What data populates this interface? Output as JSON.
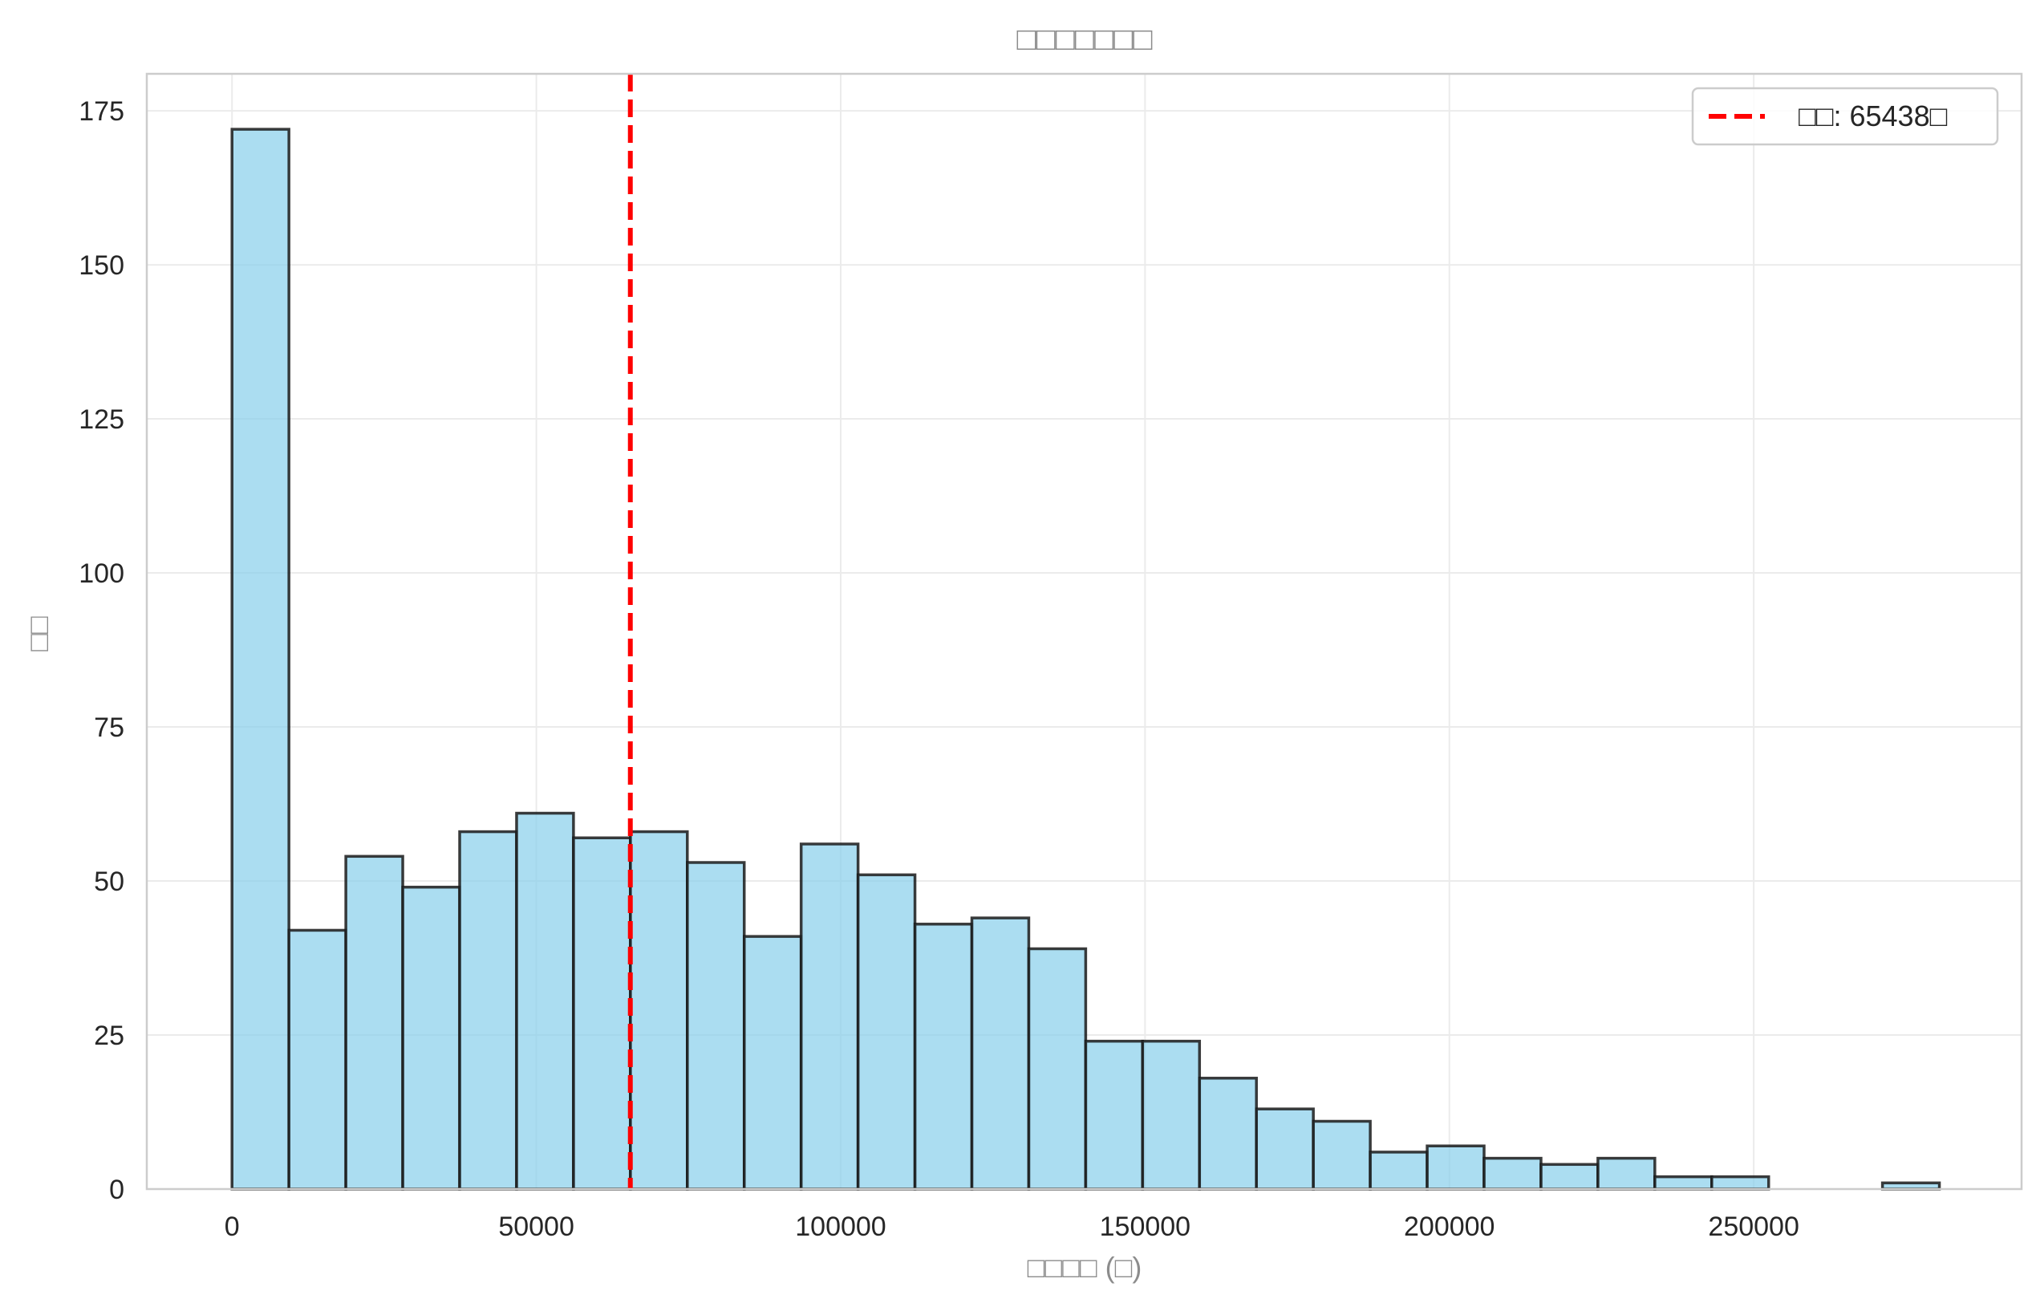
{
  "chart_data": {
    "type": "bar",
    "title": "□□□□□□□",
    "xlabel": "□□□□ (□)",
    "ylabel": "□□",
    "xlim": [
      -14000,
      294000
    ],
    "ylim": [
      0,
      181
    ],
    "x_ticks": [
      0,
      50000,
      100000,
      150000,
      200000,
      250000
    ],
    "x_tick_labels": [
      "0",
      "50000",
      "100000",
      "150000",
      "200000",
      "250000"
    ],
    "y_ticks": [
      0,
      25,
      50,
      75,
      100,
      125,
      150,
      175
    ],
    "y_tick_labels": [
      "0",
      "25",
      "50",
      "75",
      "100",
      "125",
      "150",
      "175"
    ],
    "grid": true,
    "bin_edges": [
      0,
      9350,
      18700,
      28050,
      37400,
      46750,
      56100,
      65450,
      74800,
      84150,
      93500,
      102850,
      112200,
      121550,
      130900,
      140250,
      149600,
      158950,
      168300,
      177650,
      187000,
      196350,
      205700,
      215050,
      224400,
      233750,
      243100,
      252450,
      261800,
      271150,
      280500
    ],
    "counts": [
      172,
      42,
      54,
      49,
      58,
      61,
      57,
      58,
      53,
      41,
      56,
      51,
      43,
      44,
      39,
      24,
      24,
      18,
      13,
      11,
      6,
      7,
      5,
      4,
      5,
      2,
      2,
      0,
      0,
      1
    ],
    "bar_color": "#87CEEB",
    "bar_edge_color": "#1a1a1a",
    "mean_line": {
      "value": 65438,
      "color": "#ff0000",
      "style": "dashed"
    },
    "legend": {
      "placement": "top-right",
      "entries": [
        {
          "label": "□□: 65438□",
          "color": "#ff0000",
          "style": "dashed"
        }
      ]
    }
  }
}
